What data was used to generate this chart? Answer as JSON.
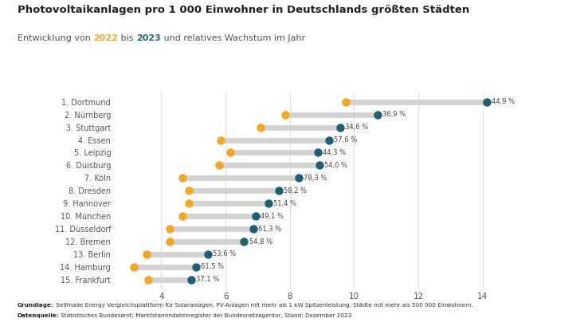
{
  "title": "Photovoltaikanlagen pro 1 000 Einwohner in Deutschlands größten Städten",
  "subtitle_prefix": "Entwicklung von ",
  "subtitle_year1": "2022",
  "subtitle_mid": " bis ",
  "subtitle_year2": "2023",
  "subtitle_suffix": " und relatives Wachstum im Jahr",
  "year1_color": "#F5A623",
  "year2_color": "#1A6680",
  "cities": [
    "1. Dortmund",
    "2. Nürnberg",
    "3. Stuttgart",
    "4. Essen",
    "5. Leipzig",
    "6. Duisburg",
    "7. Köln",
    "8. Dresden",
    "9. Hannover",
    "10. München",
    "11. Düsseldorf",
    "12. Bremen",
    "13. Berlin",
    "14. Hamburg",
    "15. Frankfurt"
  ],
  "val_2022": [
    9.75,
    7.85,
    7.1,
    5.85,
    6.15,
    5.8,
    4.65,
    4.85,
    4.85,
    4.65,
    4.25,
    4.25,
    3.55,
    3.15,
    3.6
  ],
  "val_2023": [
    14.13,
    10.74,
    9.56,
    9.22,
    8.87,
    8.93,
    8.29,
    7.67,
    7.33,
    6.93,
    6.86,
    6.58,
    5.45,
    5.09,
    4.94
  ],
  "growth": [
    "44,9 %",
    "36,9 %",
    "34,6 %",
    "57,6 %",
    "44,3 %",
    "54,0 %",
    "78,3 %",
    "58,2 %",
    "51,4 %",
    "49,1 %",
    "61,3 %",
    "54,8 %",
    "53,6 %",
    "61,5 %",
    "37,1 %"
  ],
  "xlim": [
    2.5,
    15.5
  ],
  "xticks": [
    4,
    6,
    8,
    10,
    12,
    14
  ],
  "bar_color": "#D3D3D3",
  "dot_2022_color": "#F5A623",
  "dot_2023_color": "#1F5F74",
  "background_color": "#FFFFFF",
  "footer_line1_bold": "Grundlage:",
  "footer_line1_rest": " Selfmade Energy Vergleichsplattform für Solaranlagen, PV-Anlagen mit mehr als 1 kW Spitzenleistung, Städte mit mehr als 500 000 Einwohnern.",
  "footer_line2_bold": "Datenquelle:",
  "footer_line2_rest": " Statistisches Bundesamt; Marktstammdatenregister der Bundesnetzagentur, Stand: Dezember 2023"
}
